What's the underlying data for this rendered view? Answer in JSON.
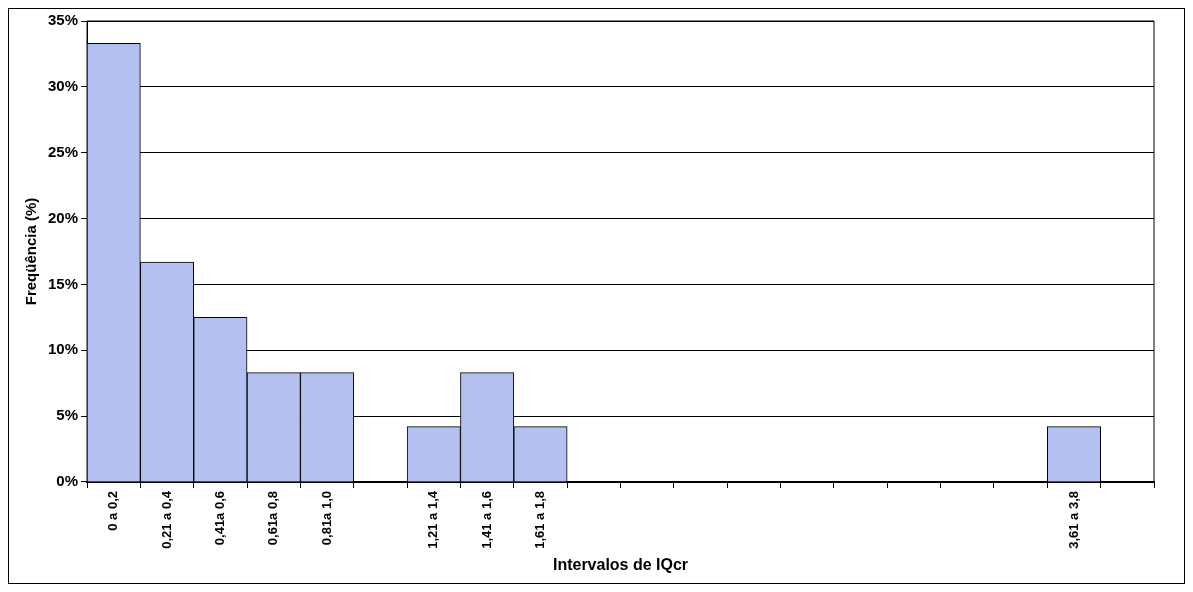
{
  "chart_data": {
    "type": "bar",
    "xlabel": "Intervalos de IQcr",
    "ylabel": "Freqüência (%)",
    "categories": [
      "0 a 0,2",
      "0,21 a 0,4",
      "0,41a 0,6",
      "0,61a 0,8",
      "0,81a 1,0",
      null,
      "1,21 a 1,4",
      "1,41 a 1,6",
      "1,61 a 1,8",
      null,
      null,
      null,
      null,
      null,
      null,
      null,
      null,
      null,
      "3,61 a 3,8",
      null
    ],
    "values": [
      33.3,
      16.7,
      12.5,
      8.3,
      8.3,
      0,
      4.2,
      8.3,
      4.2,
      0,
      0,
      0,
      0,
      0,
      0,
      0,
      0,
      0,
      4.2,
      0
    ],
    "color": "#b4c0f0",
    "ylim": [
      0,
      35
    ],
    "yticks": [
      {
        "value": 0,
        "label": "0%"
      },
      {
        "value": 5,
        "label": "5%"
      },
      {
        "value": 10,
        "label": "10%"
      },
      {
        "value": 15,
        "label": "15%"
      },
      {
        "value": 20,
        "label": "20%"
      },
      {
        "value": 25,
        "label": "25%"
      },
      {
        "value": 30,
        "label": "30%"
      },
      {
        "value": 35,
        "label": "35%"
      }
    ],
    "grid": "y"
  }
}
